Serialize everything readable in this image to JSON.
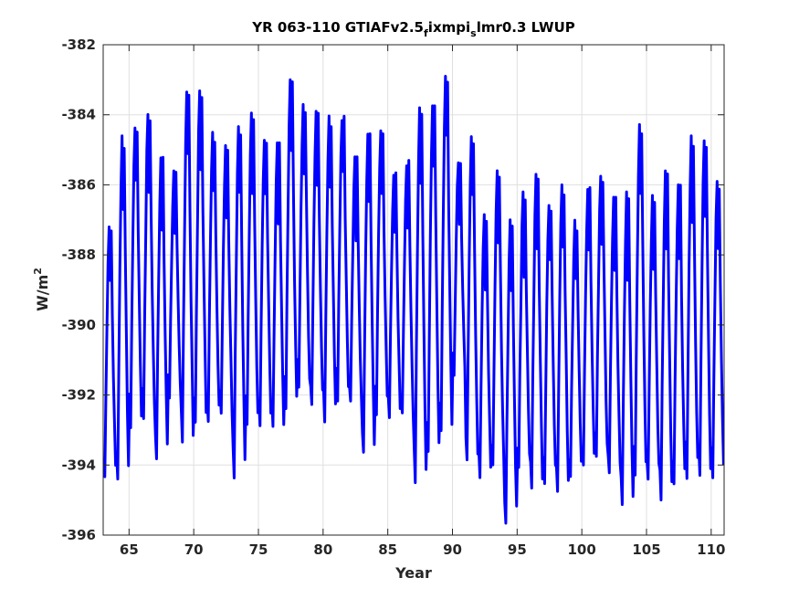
{
  "chart_data": {
    "type": "line",
    "title": {
      "main": "YR 063-110 GTIAFv2.5",
      "sub1": "f",
      "mid": "ixmpi",
      "sub2": "s",
      "tail": "lmr0.3 LWUP"
    },
    "xlabel": "Year",
    "ylabel": {
      "base": "W/m",
      "sup": "2"
    },
    "xlim": [
      63,
      111
    ],
    "ylim": [
      -396,
      -382
    ],
    "xticks": [
      65,
      70,
      75,
      80,
      85,
      90,
      95,
      100,
      105,
      110
    ],
    "yticks": [
      -396,
      -394,
      -392,
      -390,
      -388,
      -386,
      -384,
      -382
    ],
    "grid": true,
    "legend": "none",
    "series": [
      {
        "color": "#0000ff",
        "line_width": 3,
        "sampling": "monthly, one value per month starting Jan of year 63",
        "annual_max": [
          -387.2,
          -384.6,
          -384.3,
          -383.9,
          -385.2,
          -385.6,
          -383.3,
          -383.3,
          -384.5,
          -384.8,
          -384.2,
          -383.8,
          -384.7,
          -384.8,
          -383.0,
          -383.6,
          -383.9,
          -384.0,
          -384.0,
          -385.2,
          -384.5,
          -384.4,
          -385.6,
          -385.3,
          -383.8,
          -383.6,
          -382.9,
          -385.2,
          -384.5,
          -386.8,
          -385.5,
          -387.0,
          -386.2,
          -385.7,
          -386.5,
          -386.0,
          -387.0,
          -386.0,
          -385.7,
          -386.3,
          -386.2,
          -384.2,
          -386.3,
          -385.6,
          -386.0,
          -384.6,
          -384.6,
          -385.9
        ],
        "annual_min": [
          -394.5,
          -394.6,
          -393.0,
          -392.8,
          -393.9,
          -392.2,
          -393.6,
          -393.0,
          -392.8,
          -392.8,
          -394.4,
          -393.1,
          -393.0,
          -393.2,
          -392.6,
          -392.0,
          -392.5,
          -392.8,
          -392.2,
          -392.4,
          -393.9,
          -392.6,
          -392.8,
          -392.8,
          -394.6,
          -393.8,
          -393.4,
          -391.6,
          -394.2,
          -394.5,
          -394.3,
          -395.8,
          -394.3,
          -394.8,
          -394.6,
          -394.8,
          -394.5,
          -394.3,
          -393.8,
          -394.5,
          -395.4,
          -394.4,
          -394.6,
          -395.1,
          -394.8,
          -394.5,
          -394.6,
          -394.4
        ],
        "sub_peak_offset": 1.6
      }
    ]
  }
}
